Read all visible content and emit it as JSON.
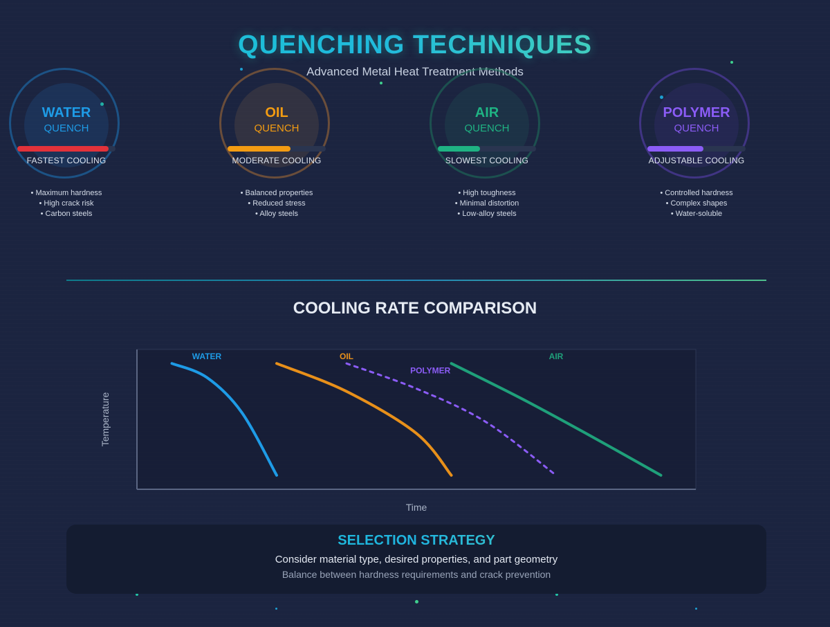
{
  "header": {
    "title": "QUENCHING TECHNIQUES",
    "subtitle": "Advanced Metal Heat Treatment Methods"
  },
  "methods": [
    {
      "name": "WATER",
      "sub": "QUENCH",
      "speed": "FASTEST COOLING",
      "rate": 0.93,
      "color": "#1e9be6",
      "bar_color": "#e2323a",
      "bullets": [
        "• Maximum hardness",
        "• High crack risk",
        "• Carbon steels"
      ]
    },
    {
      "name": "OIL",
      "sub": "QUENCH",
      "speed": "MODERATE COOLING",
      "rate": 0.64,
      "color": "#f39c12",
      "bar_color": "#f39c12",
      "bullets": [
        "• Balanced properties",
        "• Reduced stress",
        "• Alloy steels"
      ]
    },
    {
      "name": "AIR",
      "sub": "QUENCH",
      "speed": "SLOWEST COOLING",
      "rate": 0.43,
      "color": "#1fb383",
      "bar_color": "#1fb383",
      "bullets": [
        "• High toughness",
        "• Minimal distortion",
        "• Low-alloy steels"
      ]
    },
    {
      "name": "POLYMER",
      "sub": "QUENCH",
      "speed": "ADJUSTABLE COOLING",
      "rate": 0.57,
      "color": "#8b5cf6",
      "bar_color": "#8b5cf6",
      "bullets": [
        "• Controlled hardness",
        "• Complex shapes",
        "• Water-soluble"
      ]
    }
  ],
  "chart": {
    "title": "COOLING RATE COMPARISON"
  },
  "chart_data": {
    "type": "line",
    "title": "COOLING RATE COMPARISON",
    "xlabel": "Time",
    "ylabel": "Temperature",
    "xlim": [
      0,
      8
    ],
    "ylim": [
      0,
      1
    ],
    "grid": false,
    "series": [
      {
        "name": "WATER",
        "color": "#1e9be6",
        "dashed": false,
        "label_x": 1.0,
        "label_y": 0.95,
        "x": [
          0.5,
          1.0,
          1.5,
          2.0
        ],
        "y": [
          0.9,
          0.8,
          0.55,
          0.1
        ]
      },
      {
        "name": "OIL",
        "color": "#e8901a",
        "dashed": false,
        "label_x": 3.0,
        "label_y": 0.95,
        "x": [
          2.0,
          3.0,
          4.0,
          4.5
        ],
        "y": [
          0.9,
          0.7,
          0.4,
          0.1
        ]
      },
      {
        "name": "POLYMER",
        "color": "#8b5cf6",
        "dashed": true,
        "label_x": 4.2,
        "label_y": 0.85,
        "x": [
          3.0,
          4.0,
          5.0,
          6.0
        ],
        "y": [
          0.9,
          0.72,
          0.48,
          0.1
        ]
      },
      {
        "name": "AIR",
        "color": "#1fa07a",
        "dashed": false,
        "label_x": 6.0,
        "label_y": 0.95,
        "x": [
          4.5,
          5.5,
          6.5,
          7.5
        ],
        "y": [
          0.9,
          0.65,
          0.38,
          0.1
        ]
      }
    ]
  },
  "strategy": {
    "title": "SELECTION STRATEGY",
    "line1": "Consider material type, desired properties, and part geometry",
    "line2": "Balance between hardness requirements and crack prevention"
  }
}
